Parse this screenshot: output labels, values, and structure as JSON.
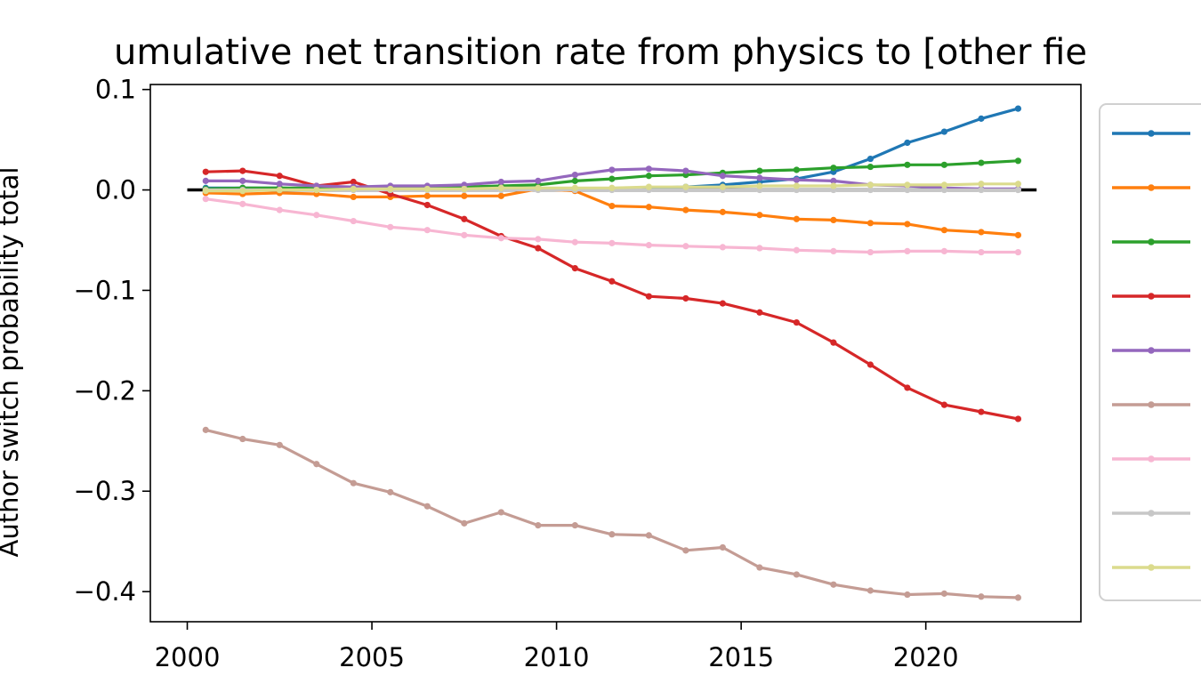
{
  "chart_data": {
    "type": "line",
    "title": "umulative net transition rate from physics to [other fie",
    "ylabel": "Author switch probability total",
    "xlabel": "",
    "xlim": [
      1999,
      2024.2
    ],
    "ylim": [
      -0.43,
      0.105
    ],
    "xticks": [
      2000,
      2005,
      2010,
      2015,
      2020
    ],
    "yticks": [
      0.1,
      0.0,
      -0.1,
      -0.2,
      -0.3,
      -0.4
    ],
    "ytick_labels": [
      "0.1",
      "0.0",
      "−0.1",
      "−0.2",
      "−0.3",
      "−0.4"
    ],
    "grid": false,
    "legend_position": "right, outside plot (entries without labels)",
    "reference_line": {
      "y": 0,
      "x": [
        2000,
        2023
      ],
      "color": "#000000"
    },
    "x": [
      2000.5,
      2001.5,
      2002.5,
      2003.5,
      2004.5,
      2005.5,
      2006.5,
      2007.5,
      2008.5,
      2009.5,
      2010.5,
      2011.5,
      2012.5,
      2013.5,
      2014.5,
      2015.5,
      2016.5,
      2017.5,
      2018.5,
      2019.5,
      2020.5,
      2021.5,
      2022.5
    ],
    "series": [
      {
        "color": "#1f77b4",
        "values": [
          0.002,
          0.002,
          0.002,
          0.001,
          0.001,
          0.001,
          0.001,
          0.001,
          0.001,
          0.001,
          0.001,
          0.001,
          0.002,
          0.003,
          0.005,
          0.008,
          0.011,
          0.018,
          0.031,
          0.047,
          0.058,
          0.071,
          0.081
        ]
      },
      {
        "color": "#ff7f0e",
        "values": [
          -0.003,
          -0.004,
          -0.003,
          -0.004,
          -0.007,
          -0.007,
          -0.006,
          -0.006,
          -0.006,
          0.001,
          -0.001,
          -0.016,
          -0.017,
          -0.02,
          -0.022,
          -0.025,
          -0.029,
          -0.03,
          -0.033,
          -0.034,
          -0.04,
          -0.042,
          -0.045
        ]
      },
      {
        "color": "#2ca02c",
        "values": [
          0.001,
          0.002,
          0.002,
          0.002,
          0.002,
          0.003,
          0.003,
          0.003,
          0.004,
          0.005,
          0.009,
          0.011,
          0.014,
          0.015,
          0.017,
          0.019,
          0.02,
          0.022,
          0.023,
          0.025,
          0.025,
          0.027,
          0.029
        ]
      },
      {
        "color": "#d62728",
        "values": [
          0.018,
          0.019,
          0.014,
          0.004,
          0.008,
          -0.004,
          -0.015,
          -0.029,
          -0.046,
          -0.058,
          -0.078,
          -0.091,
          -0.106,
          -0.108,
          -0.113,
          -0.122,
          -0.132,
          -0.152,
          -0.174,
          -0.197,
          -0.214,
          -0.221,
          -0.228
        ]
      },
      {
        "color": "#9467bd",
        "values": [
          0.009,
          0.009,
          0.006,
          0.004,
          0.003,
          0.004,
          0.004,
          0.005,
          0.008,
          0.009,
          0.015,
          0.02,
          0.021,
          0.019,
          0.014,
          0.012,
          0.01,
          0.009,
          0.005,
          0.004,
          0.002,
          0.001,
          0.001
        ]
      },
      {
        "color": "#c49c94",
        "values": [
          -0.239,
          -0.248,
          -0.254,
          -0.273,
          -0.292,
          -0.301,
          -0.315,
          -0.332,
          -0.321,
          -0.334,
          -0.334,
          -0.343,
          -0.344,
          -0.359,
          -0.356,
          -0.376,
          -0.383,
          -0.393,
          -0.399,
          -0.403,
          -0.402,
          -0.405,
          -0.406
        ]
      },
      {
        "color": "#f7b6d2",
        "values": [
          -0.009,
          -0.014,
          -0.02,
          -0.025,
          -0.031,
          -0.037,
          -0.04,
          -0.045,
          -0.048,
          -0.049,
          -0.052,
          -0.053,
          -0.055,
          -0.056,
          -0.057,
          -0.058,
          -0.06,
          -0.061,
          -0.062,
          -0.061,
          -0.061,
          -0.062,
          -0.062
        ]
      },
      {
        "color": "#c7c7c7",
        "values": [
          0.0,
          0.0,
          0.0,
          0.0,
          0.0,
          0.0,
          0.0,
          0.0,
          0.0,
          0.0,
          0.0,
          0.0,
          0.0,
          0.0,
          0.0,
          0.0,
          0.0,
          0.0,
          0.0,
          0.0,
          0.0,
          0.0,
          0.0
        ]
      },
      {
        "color": "#dbdb8d",
        "values": [
          -0.001,
          -0.001,
          0.0,
          0.0,
          0.001,
          0.001,
          0.001,
          0.001,
          0.002,
          0.002,
          0.002,
          0.002,
          0.003,
          0.003,
          0.003,
          0.004,
          0.004,
          0.004,
          0.005,
          0.005,
          0.005,
          0.006,
          0.006
        ]
      }
    ]
  }
}
